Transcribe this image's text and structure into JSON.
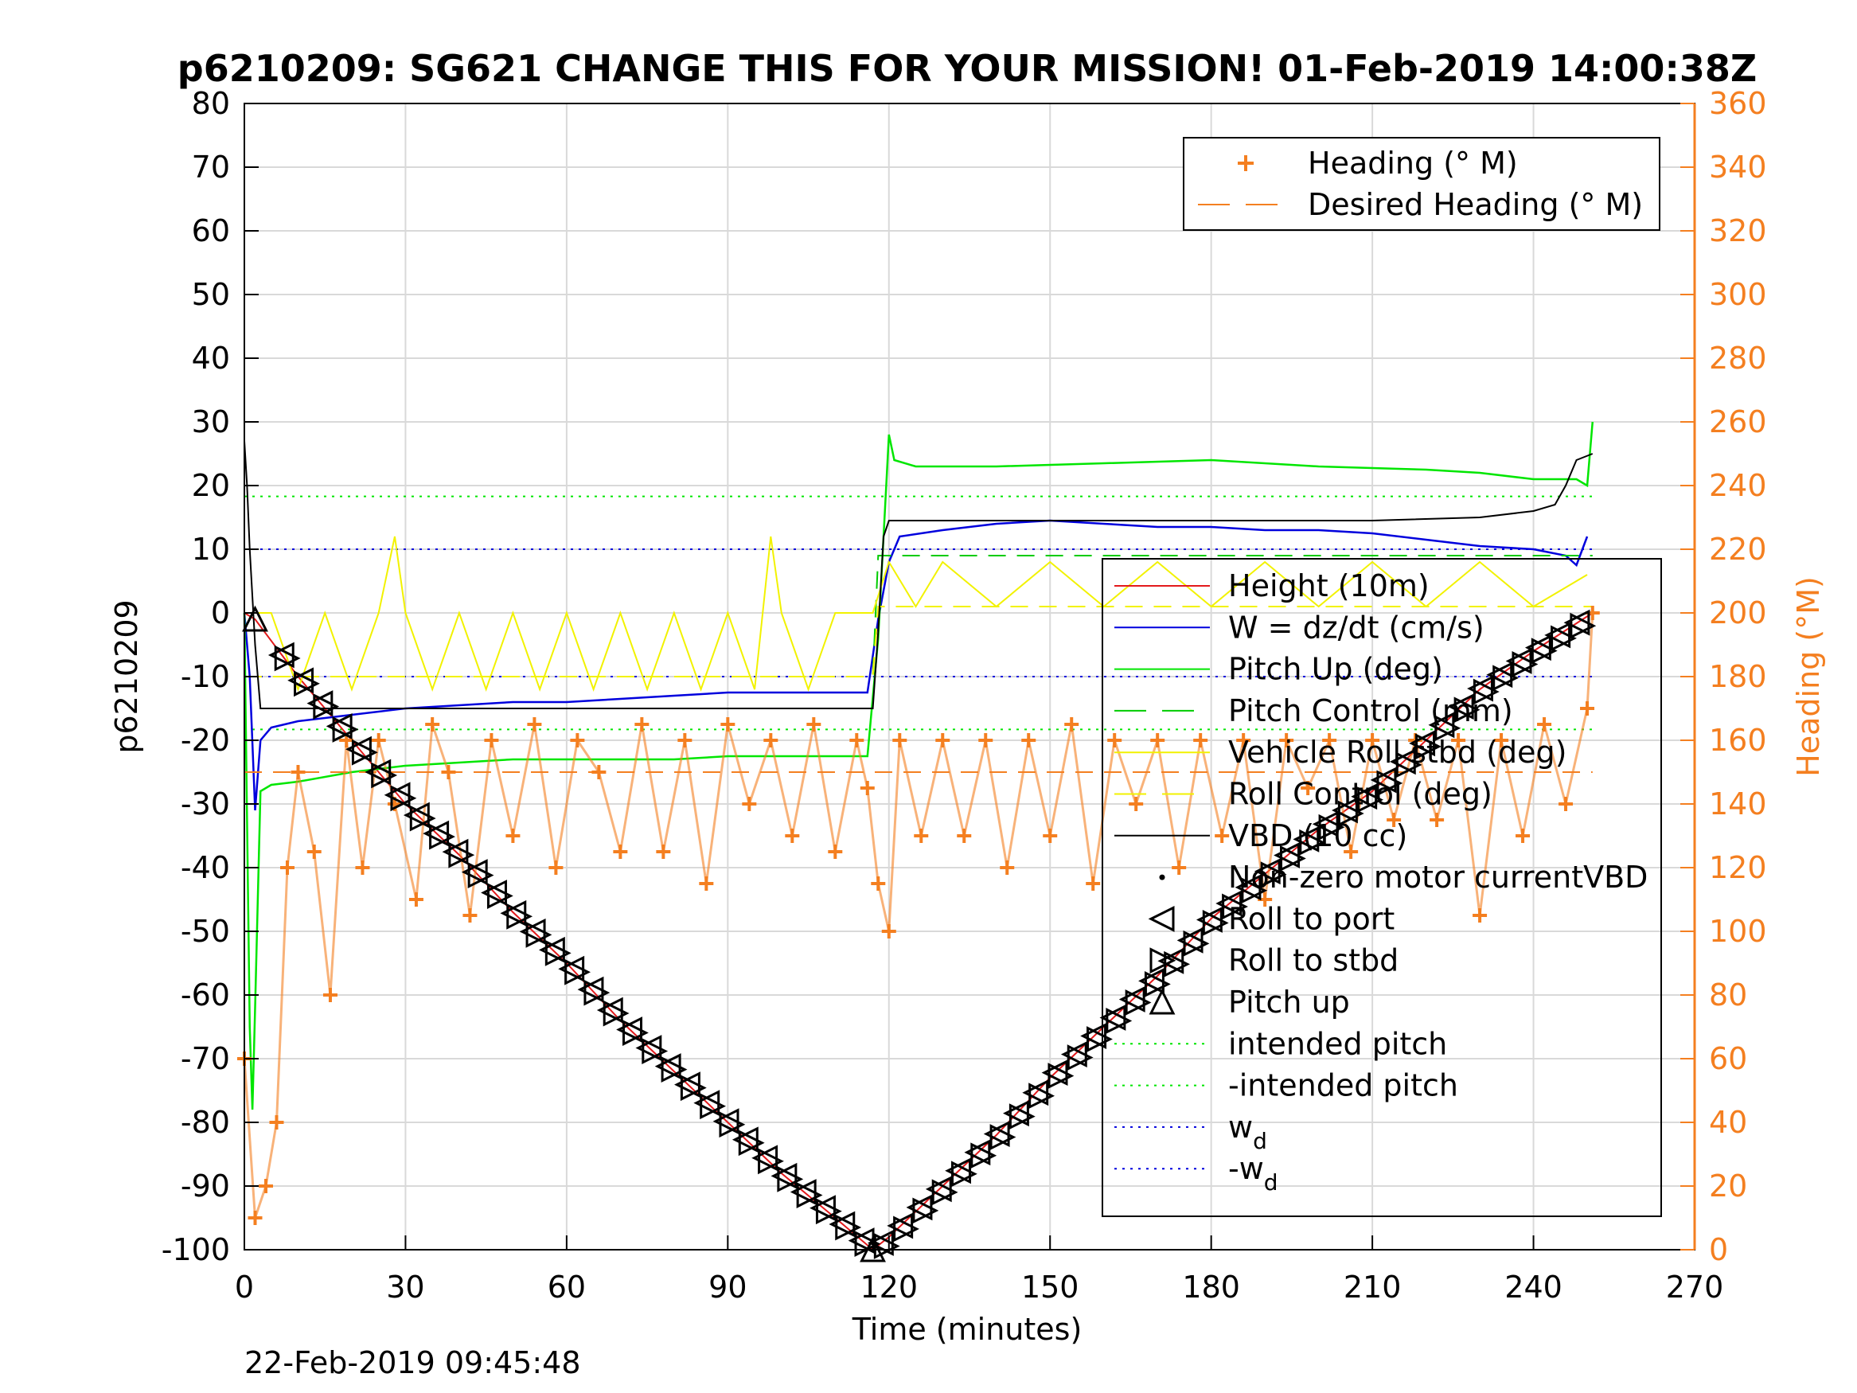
{
  "chart_data": {
    "type": "line",
    "title": "p6210209: SG621 CHANGE THIS FOR YOUR MISSION! 01-Feb-2019 14:00:38Z",
    "xlabel": "Time (minutes)",
    "ylabel_left": "p6210209",
    "ylabel_right": "Heading (°M)",
    "timestamp": "22-Feb-2019 09:45:48",
    "xlim": [
      0,
      270
    ],
    "ylim_left": [
      -100,
      80
    ],
    "ylim_right": [
      0,
      360
    ],
    "x_ticks": [
      "0",
      "30",
      "60",
      "90",
      "120",
      "150",
      "180",
      "210",
      "240",
      "270"
    ],
    "y_ticks_left": [
      "80",
      "70",
      "60",
      "50",
      "40",
      "30",
      "20",
      "10",
      "0",
      "-10",
      "-20",
      "-30",
      "-40",
      "-50",
      "-60",
      "-70",
      "-80",
      "-90",
      "-100"
    ],
    "y_ticks_right": [
      "360",
      "340",
      "320",
      "300",
      "280",
      "260",
      "240",
      "220",
      "200",
      "180",
      "160",
      "140",
      "120",
      "100",
      "80",
      "60",
      "40",
      "20",
      "0"
    ],
    "grid": true,
    "colors": {
      "height": "#e31a1c",
      "w": "#0000dd",
      "pitch_up": "#00e600",
      "pitch_control": "#00cc00",
      "roll": "#f2f200",
      "vbd": "#000000",
      "heading": "#f47f20",
      "axis_right": "#f47f20"
    },
    "legend_heading": {
      "position": "top-right",
      "entries": [
        {
          "label": "Heading (° M)",
          "marker": "plus",
          "color": "#f47f20"
        },
        {
          "label": "Desired Heading (° M)",
          "marker": "dash",
          "color": "#f47f20"
        }
      ]
    },
    "legend_main": {
      "position": "right",
      "entries": [
        {
          "label": "Height (10m)",
          "color": "#e31a1c",
          "style": "solid"
        },
        {
          "label": "W = dz/dt (cm/s)",
          "color": "#0000dd",
          "style": "solid"
        },
        {
          "label": "Pitch Up (deg)",
          "color": "#00e600",
          "style": "solid"
        },
        {
          "label": "Pitch Control (mm)",
          "color": "#00cc00",
          "style": "dash"
        },
        {
          "label": "Vehicle Roll stbd (deg)",
          "color": "#f2f200",
          "style": "solid"
        },
        {
          "label": "Roll Control (deg)",
          "color": "#f2f200",
          "style": "dash"
        },
        {
          "label": "VBD (10 cc)",
          "color": "#000000",
          "style": "solid"
        },
        {
          "label": "Non-zero motor currentVBD",
          "color": "#000000",
          "style": "dot-marker"
        },
        {
          "label": "Roll to port",
          "color": "#000000",
          "style": "tri-left"
        },
        {
          "label": "Roll to stbd",
          "color": "#000000",
          "style": "tri-right"
        },
        {
          "label": "Pitch up",
          "color": "#000000",
          "style": "tri-up"
        },
        {
          "label": "intended pitch",
          "color": "#00e600",
          "style": "dotted"
        },
        {
          "label": "-intended pitch",
          "color": "#00e600",
          "style": "dotted"
        },
        {
          "label": "w",
          "sub": "d",
          "color": "#0000dd",
          "style": "dotted"
        },
        {
          "label": "-w",
          "sub": "d",
          "color": "#0000dd",
          "style": "dotted"
        }
      ]
    },
    "reference_lines": [
      {
        "name": "intended pitch",
        "y": 18.3,
        "color": "#00e600"
      },
      {
        "name": "-intended pitch",
        "y": -18.3,
        "color": "#00e600"
      },
      {
        "name": "w_d",
        "y": 10,
        "color": "#0000dd"
      },
      {
        "name": "-w_d",
        "y": -10,
        "color": "#0000dd"
      }
    ],
    "series": [
      {
        "name": "Height (10m)",
        "axis": "left",
        "x": [
          0,
          2,
          10,
          20,
          30,
          40,
          50,
          60,
          70,
          80,
          90,
          100,
          110,
          117,
          120,
          130,
          140,
          150,
          160,
          170,
          180,
          190,
          200,
          210,
          220,
          230,
          240,
          251
        ],
        "y": [
          0,
          -1,
          -10,
          -20,
          -30,
          -38,
          -47,
          -55,
          -64,
          -72,
          -80,
          -88,
          -95,
          -100,
          -98,
          -90,
          -82,
          -73,
          -65,
          -57,
          -48,
          -41,
          -34,
          -28,
          -20,
          -12,
          -6,
          0
        ]
      },
      {
        "name": "W = dz/dt (cm/s)",
        "axis": "left",
        "x": [
          0,
          1,
          2,
          3,
          5,
          10,
          20,
          30,
          40,
          50,
          60,
          70,
          80,
          90,
          100,
          110,
          116,
          118,
          120,
          122,
          130,
          140,
          150,
          160,
          170,
          180,
          190,
          200,
          210,
          220,
          230,
          240,
          246,
          248,
          250
        ],
        "y": [
          0,
          -10,
          -31,
          -20,
          -18,
          -17,
          -16,
          -15,
          -14.5,
          -14,
          -14,
          -13.5,
          -13,
          -12.5,
          -12.5,
          -12.5,
          -12.5,
          -1,
          8,
          12,
          13,
          14,
          14.5,
          14,
          13.5,
          13.5,
          13,
          13,
          12.5,
          11.5,
          10.5,
          10,
          9,
          7.5,
          12
        ]
      },
      {
        "name": "Pitch Up (deg)",
        "axis": "left",
        "x": [
          0,
          1,
          1.5,
          2,
          3,
          5,
          10,
          20,
          30,
          40,
          50,
          60,
          70,
          80,
          90,
          100,
          110,
          116,
          118,
          119,
          120,
          121,
          125,
          140,
          160,
          180,
          200,
          220,
          230,
          240,
          248,
          250,
          251
        ],
        "y": [
          0,
          -65,
          -78,
          -62,
          -28,
          -27,
          -26.5,
          -25,
          -24,
          -23.5,
          -23,
          -23,
          -23,
          -23,
          -22.5,
          -22.5,
          -22.5,
          -22.5,
          -4,
          12,
          28,
          24,
          23,
          23,
          23.5,
          24,
          23,
          22.5,
          22,
          21,
          21,
          20,
          30
        ]
      },
      {
        "name": "Pitch Control (mm)",
        "axis": "left",
        "x": [
          0,
          2,
          117,
          118,
          251
        ],
        "y": [
          -10,
          -10,
          -10,
          9,
          9
        ]
      },
      {
        "name": "Vehicle Roll stbd (deg)",
        "axis": "left",
        "x": [
          0,
          5,
          10,
          15,
          20,
          25,
          28,
          30,
          35,
          40,
          45,
          50,
          55,
          60,
          65,
          70,
          75,
          80,
          85,
          90,
          95,
          98,
          100,
          105,
          110,
          117,
          120,
          125,
          130,
          140,
          150,
          160,
          170,
          180,
          190,
          200,
          210,
          220,
          230,
          240,
          250
        ],
        "y": [
          0,
          0,
          -12,
          0,
          -12,
          0,
          12,
          0,
          -12,
          0,
          -12,
          0,
          -12,
          0,
          -12,
          0,
          -12,
          0,
          -12,
          0,
          -12,
          12,
          0,
          -12,
          0,
          0,
          8,
          1,
          8,
          1,
          8,
          1,
          8,
          1,
          8,
          1,
          8,
          1,
          8,
          1,
          6
        ]
      },
      {
        "name": "Roll Control (deg)",
        "axis": "left",
        "x": [
          0,
          117,
          118,
          251
        ],
        "y": [
          -10,
          -10,
          1,
          1
        ]
      },
      {
        "name": "VBD (10 cc)",
        "axis": "left",
        "x": [
          0,
          0.5,
          1,
          2,
          3,
          10,
          50,
          100,
          117,
          118,
          119,
          120,
          130,
          150,
          170,
          190,
          210,
          230,
          240,
          244,
          246,
          248,
          251
        ],
        "y": [
          27,
          20,
          10,
          -5,
          -15,
          -15,
          -15,
          -15,
          -15,
          -3,
          12,
          14.5,
          14.5,
          14.5,
          14.5,
          14.5,
          14.5,
          15,
          16,
          17,
          20,
          24,
          25
        ]
      },
      {
        "name": "Heading (° M)",
        "axis": "right",
        "x": [
          0,
          2,
          4,
          6,
          8,
          10,
          13,
          16,
          19,
          22,
          25,
          28,
          32,
          35,
          38,
          42,
          46,
          50,
          54,
          58,
          62,
          66,
          70,
          74,
          78,
          82,
          86,
          90,
          94,
          98,
          102,
          106,
          110,
          114,
          116,
          118,
          120,
          122,
          126,
          130,
          134,
          138,
          142,
          146,
          150,
          154,
          158,
          162,
          166,
          170,
          174,
          178,
          182,
          186,
          190,
          194,
          198,
          202,
          206,
          210,
          214,
          218,
          222,
          226,
          230,
          234,
          238,
          242,
          246,
          250,
          251
        ],
        "y": [
          60,
          10,
          20,
          40,
          120,
          150,
          125,
          80,
          160,
          120,
          160,
          140,
          110,
          165,
          150,
          105,
          160,
          130,
          165,
          120,
          160,
          150,
          125,
          165,
          125,
          160,
          115,
          165,
          140,
          160,
          130,
          165,
          125,
          160,
          145,
          115,
          100,
          160,
          130,
          160,
          130,
          160,
          120,
          160,
          130,
          165,
          115,
          160,
          140,
          160,
          120,
          160,
          130,
          160,
          110,
          160,
          145,
          160,
          125,
          160,
          135,
          160,
          135,
          160,
          105,
          160,
          130,
          165,
          140,
          170,
          200
        ]
      },
      {
        "name": "Desired Heading (° M)",
        "axis": "right",
        "x": [
          0,
          251
        ],
        "y": [
          150,
          150
        ]
      }
    ]
  }
}
